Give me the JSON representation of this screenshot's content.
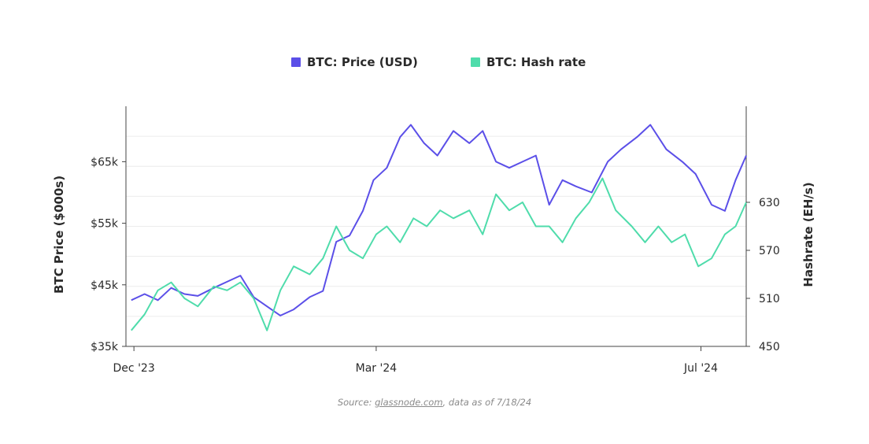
{
  "chart_data": {
    "type": "line",
    "legend_position": "top-center",
    "grid": true,
    "x_range": [
      "2023-11-28",
      "2024-07-18"
    ],
    "x_ticks": [
      {
        "label": "Dec '23",
        "date": "2023-12-01"
      },
      {
        "label": "Mar '24",
        "date": "2024-03-01"
      },
      {
        "label": "Jul '24",
        "date": "2024-07-01"
      }
    ],
    "y_left": {
      "label": "BTC Price ($000s)",
      "range": [
        35,
        74
      ],
      "ticks": [
        {
          "value": 35,
          "label": "$35k"
        },
        {
          "value": 45,
          "label": "$45k"
        },
        {
          "value": 55,
          "label": "$55k"
        },
        {
          "value": 65,
          "label": "$65k"
        }
      ]
    },
    "y_right": {
      "label": "Hashrate (EH/s)",
      "range": [
        450,
        750
      ],
      "ticks": [
        {
          "value": 450,
          "label": "450"
        },
        {
          "value": 510,
          "label": "510"
        },
        {
          "value": 570,
          "label": "570"
        },
        {
          "value": 630,
          "label": "630"
        }
      ]
    },
    "series": [
      {
        "name": "BTC: Price (USD)",
        "color": "#5b4fe8",
        "axis": "left",
        "x": [
          "2023-11-30",
          "2023-12-05",
          "2023-12-10",
          "2023-12-15",
          "2023-12-20",
          "2023-12-25",
          "2023-12-31",
          "2024-01-05",
          "2024-01-10",
          "2024-01-15",
          "2024-01-20",
          "2024-01-25",
          "2024-01-30",
          "2024-02-05",
          "2024-02-10",
          "2024-02-15",
          "2024-02-20",
          "2024-02-25",
          "2024-02-29",
          "2024-03-05",
          "2024-03-10",
          "2024-03-14",
          "2024-03-19",
          "2024-03-24",
          "2024-03-30",
          "2024-04-05",
          "2024-04-10",
          "2024-04-15",
          "2024-04-20",
          "2024-04-25",
          "2024-04-30",
          "2024-05-05",
          "2024-05-10",
          "2024-05-15",
          "2024-05-21",
          "2024-05-27",
          "2024-06-01",
          "2024-06-07",
          "2024-06-12",
          "2024-06-18",
          "2024-06-24",
          "2024-06-29",
          "2024-07-05",
          "2024-07-10",
          "2024-07-14",
          "2024-07-18"
        ],
        "values": [
          42.5,
          43.5,
          42.5,
          44.5,
          43.5,
          43.2,
          44.5,
          45.5,
          46.5,
          43,
          41.5,
          40,
          41,
          43,
          44,
          52,
          53,
          57,
          62,
          64,
          69,
          71,
          68,
          66,
          70,
          68,
          70,
          65,
          64,
          65,
          66,
          58,
          62,
          61,
          60,
          65,
          67,
          69,
          71,
          67,
          65,
          63,
          58,
          57,
          62,
          66
        ]
      },
      {
        "name": "BTC: Hash rate",
        "color": "#4fdcab",
        "axis": "right",
        "x": [
          "2023-11-30",
          "2023-12-05",
          "2023-12-10",
          "2023-12-15",
          "2023-12-20",
          "2023-12-25",
          "2023-12-31",
          "2024-01-05",
          "2024-01-10",
          "2024-01-15",
          "2024-01-20",
          "2024-01-25",
          "2024-01-30",
          "2024-02-05",
          "2024-02-10",
          "2024-02-15",
          "2024-02-20",
          "2024-02-25",
          "2024-03-01",
          "2024-03-05",
          "2024-03-10",
          "2024-03-15",
          "2024-03-20",
          "2024-03-25",
          "2024-03-30",
          "2024-04-05",
          "2024-04-10",
          "2024-04-15",
          "2024-04-20",
          "2024-04-25",
          "2024-04-30",
          "2024-05-05",
          "2024-05-10",
          "2024-05-15",
          "2024-05-20",
          "2024-05-25",
          "2024-05-30",
          "2024-06-05",
          "2024-06-10",
          "2024-06-15",
          "2024-06-20",
          "2024-06-25",
          "2024-06-30",
          "2024-07-05",
          "2024-07-10",
          "2024-07-14",
          "2024-07-18"
        ],
        "values": [
          470,
          490,
          520,
          530,
          510,
          500,
          525,
          520,
          530,
          510,
          470,
          520,
          550,
          540,
          560,
          600,
          570,
          560,
          590,
          600,
          580,
          610,
          600,
          620,
          610,
          620,
          590,
          640,
          620,
          630,
          600,
          600,
          580,
          610,
          630,
          660,
          620,
          600,
          580,
          600,
          580,
          590,
          550,
          560,
          590,
          600,
          630
        ]
      }
    ]
  },
  "source": {
    "prefix": "Source: ",
    "link": "glassnode.com",
    "suffix": ", data as of 7/18/24"
  }
}
